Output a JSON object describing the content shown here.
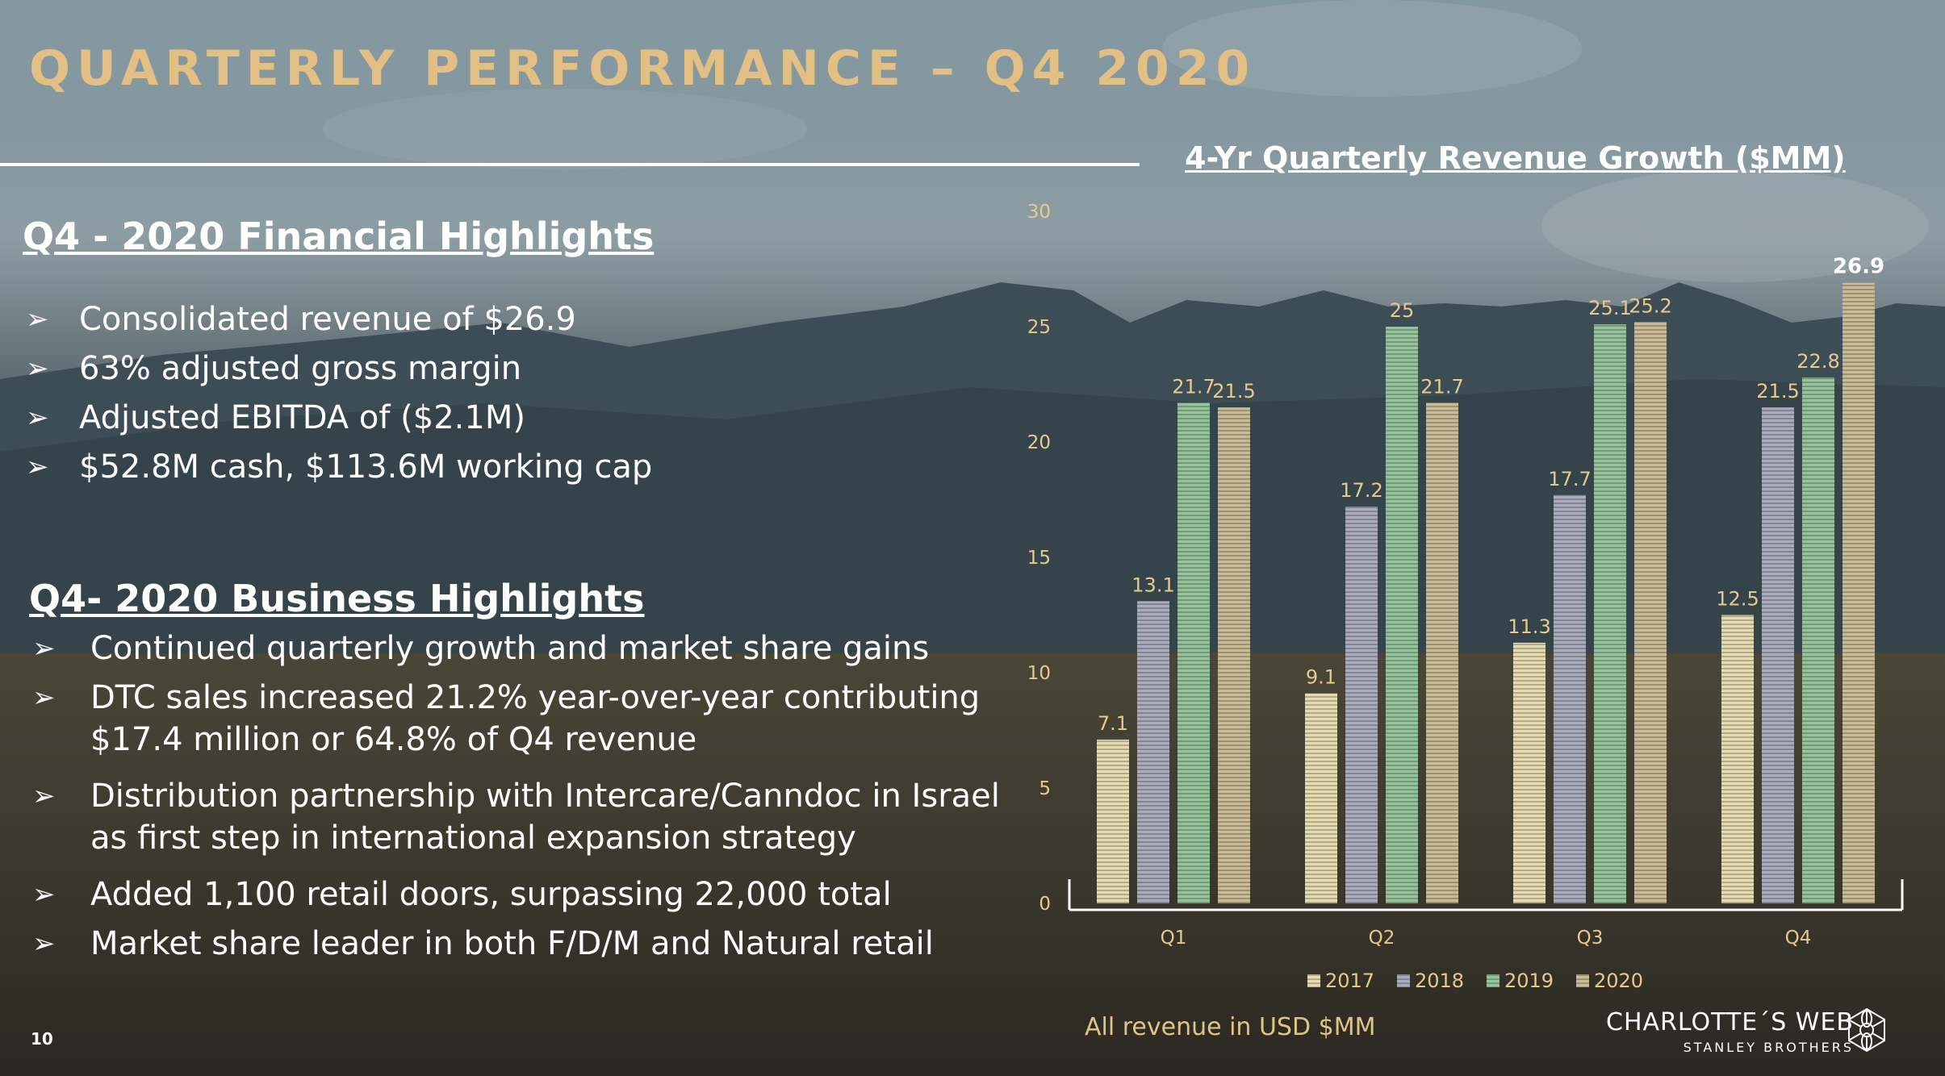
{
  "slide": {
    "title": "QUARTERLY PERFORMANCE – Q4 2020",
    "page_number": "10",
    "footnote": "All revenue in USD $MM"
  },
  "financial": {
    "heading": "Q4 - 2020 Financial Highlights",
    "bullet_icon": "arrow-bullet-icon",
    "items": [
      "Consolidated revenue of $26.9",
      "63% adjusted gross margin",
      "Adjusted EBITDA of ($2.1M)",
      "$52.8M cash, $113.6M working cap"
    ]
  },
  "business": {
    "heading": "Q4- 2020 Business Highlights",
    "items": [
      "Continued quarterly growth and market share gains",
      "DTC sales increased 21.2% year-over-year contributing $17.4 million or 64.8% of Q4 revenue",
      "Distribution partnership with Intercare/Canndoc in Israel as first step in international expansion strategy",
      "Added 1,100 retail doors, surpassing 22,000 total",
      "Market share leader in both F/D/M and Natural retail"
    ]
  },
  "brand": {
    "name": "CHARLOTTE´S WEB",
    "sub": "STANLEY BROTHERS",
    "logo_icon": "flower-logo-icon"
  },
  "chart_data": {
    "type": "bar",
    "title": "4-Yr Quarterly Revenue Growth ($MM)",
    "xlabel": "",
    "ylabel": "",
    "categories": [
      "Q1",
      "Q2",
      "Q3",
      "Q4"
    ],
    "ylim": [
      0,
      30
    ],
    "yticks": [
      "0",
      "5",
      "10",
      "15",
      "20",
      "25",
      "30"
    ],
    "grid": false,
    "legend": "bottom",
    "series": [
      {
        "name": "2017",
        "values": [
          7.1,
          9.1,
          11.3,
          12.5
        ],
        "labels": [
          "7.1",
          "9.1",
          "11.3",
          "12.5"
        ],
        "color": "#e6dbb0"
      },
      {
        "name": "2018",
        "values": [
          13.1,
          17.2,
          17.7,
          21.5
        ],
        "labels": [
          "13.1",
          "17.2",
          "17.7",
          "21.5"
        ],
        "color": "#a9abbd"
      },
      {
        "name": "2019",
        "values": [
          21.7,
          25,
          25.1,
          22.8
        ],
        "labels": [
          "21.7",
          "25",
          "25.1",
          "22.8"
        ],
        "color": "#96c49a"
      },
      {
        "name": "2020",
        "values": [
          21.5,
          21.7,
          25.2,
          26.9
        ],
        "labels": [
          "21.5",
          "21.7",
          "25.2",
          "26.9"
        ],
        "color": "#c9bb94"
      }
    ],
    "label_color": "#e8c98c",
    "highlight_label_color": "#ffffff"
  }
}
